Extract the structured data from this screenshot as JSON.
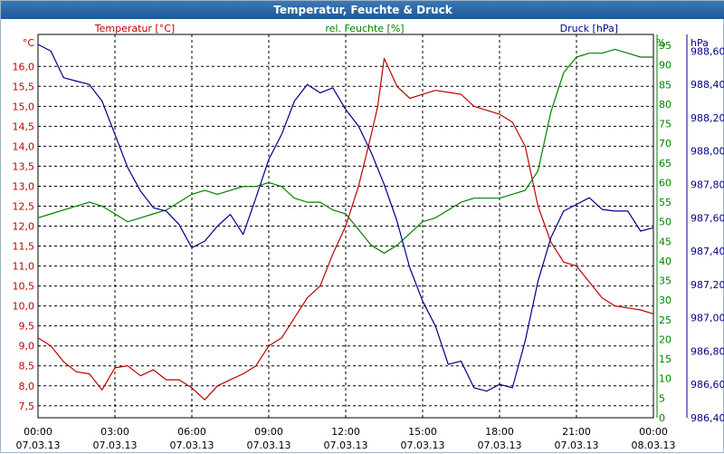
{
  "window": {
    "title": "Temperatur, Feuchte & Druck"
  },
  "colors": {
    "temperature": "#c00000",
    "humidity": "#008000",
    "pressure": "#00008b",
    "grid": "#000000"
  },
  "chart_data": {
    "type": "line",
    "title": "Temperatur, Feuchte & Druck",
    "grid": true,
    "x_ticks": [
      {
        "time": "00:00",
        "date": "07.03.13"
      },
      {
        "time": "03:00",
        "date": "07.03.13"
      },
      {
        "time": "06:00",
        "date": "07.03.13"
      },
      {
        "time": "09:00",
        "date": "07.03.13"
      },
      {
        "time": "12:00",
        "date": "07.03.13"
      },
      {
        "time": "15:00",
        "date": "07.03.13"
      },
      {
        "time": "18:00",
        "date": "07.03.13"
      },
      {
        "time": "21:00",
        "date": "07.03.13"
      },
      {
        "time": "00:00",
        "date": "08.03.13"
      }
    ],
    "axes": {
      "left": {
        "unit": "°C",
        "ylim": [
          7.2,
          16.8
        ],
        "ticks": [
          "7,5",
          "8,0",
          "8,5",
          "9,0",
          "9,5",
          "10,0",
          "10,5",
          "11,0",
          "11,5",
          "12,0",
          "12,5",
          "13,0",
          "13,5",
          "14,0",
          "14,5",
          "15,0",
          "15,5",
          "16,0"
        ]
      },
      "right1": {
        "unit": "%",
        "ylim": [
          0,
          97.78
        ],
        "ticks": [
          "0",
          "5",
          "10",
          "15",
          "20",
          "25",
          "30",
          "35",
          "40",
          "45",
          "50",
          "55",
          "60",
          "65",
          "70",
          "75",
          "80",
          "85",
          "90",
          "95"
        ]
      },
      "right2": {
        "unit": "hPa",
        "ylim": [
          986.4,
          988.7
        ],
        "ticks": [
          "986,40",
          "986,60",
          "986,80",
          "987,00",
          "987,20",
          "987,40",
          "987,60",
          "987,80",
          "988,00",
          "988,20",
          "988,40",
          "988,60"
        ]
      }
    },
    "series": [
      {
        "name": "Temperatur [°C]",
        "axis": "left",
        "x": [
          0,
          0.5,
          1,
          1.5,
          2,
          2.5,
          3,
          3.5,
          4,
          4.5,
          5,
          5.5,
          6,
          6.5,
          7,
          7.5,
          8,
          8.5,
          9,
          9.5,
          10,
          10.5,
          11,
          11.5,
          12,
          12.5,
          13,
          13.25,
          13.5,
          14,
          14.5,
          15,
          15.5,
          16,
          16.5,
          17,
          17.5,
          18,
          18.5,
          19,
          19.5,
          20,
          20.5,
          21,
          21.5,
          22,
          22.5,
          23,
          23.5,
          24
        ],
        "values": [
          9.2,
          9.0,
          8.6,
          8.35,
          8.3,
          7.9,
          8.45,
          8.5,
          8.25,
          8.4,
          8.15,
          8.15,
          7.95,
          7.65,
          8.0,
          8.15,
          8.3,
          8.5,
          9.0,
          9.2,
          9.7,
          10.2,
          10.5,
          11.3,
          12.0,
          13.0,
          14.3,
          15.0,
          16.2,
          15.5,
          15.2,
          15.3,
          15.4,
          15.35,
          15.3,
          15.0,
          14.9,
          14.8,
          14.6,
          14.0,
          12.5,
          11.6,
          11.1,
          11.0,
          10.6,
          10.2,
          10.0,
          9.95,
          9.9,
          9.8
        ]
      },
      {
        "name": "rel. Feuchte [%]",
        "axis": "right1",
        "x": [
          0,
          0.5,
          1,
          1.5,
          2,
          2.5,
          3,
          3.5,
          4,
          4.5,
          5,
          5.5,
          6,
          6.5,
          7,
          7.5,
          8,
          8.5,
          9,
          9.5,
          10,
          10.5,
          11,
          11.5,
          12,
          12.5,
          13,
          13.5,
          14,
          14.5,
          15,
          15.5,
          16,
          16.5,
          17,
          17.5,
          18,
          18.5,
          19,
          19.5,
          20,
          20.5,
          21,
          21.5,
          22,
          22.5,
          23,
          23.5,
          24
        ],
        "values": [
          51,
          52,
          53,
          54,
          55,
          54,
          52,
          50,
          51,
          52,
          53,
          55,
          57,
          58,
          57,
          58,
          59,
          59,
          60,
          59,
          56,
          55,
          55,
          53,
          52,
          48,
          44,
          42,
          44,
          47,
          50,
          51,
          53,
          55,
          56,
          56,
          56,
          57,
          58,
          63,
          78,
          88,
          92,
          93,
          93,
          94,
          93,
          92,
          92
        ]
      },
      {
        "name": "Druck [hPa]",
        "axis": "right2",
        "x": [
          0,
          0.5,
          1,
          1.5,
          2,
          2.5,
          3,
          3.5,
          4,
          4.5,
          5,
          5.5,
          6,
          6.5,
          7,
          7.5,
          8,
          8.5,
          9,
          9.5,
          10,
          10.5,
          11,
          11.5,
          12,
          12.5,
          13,
          13.5,
          14,
          14.5,
          15,
          15.5,
          16,
          16.5,
          17,
          17.5,
          18,
          18.5,
          19,
          19.5,
          20,
          20.5,
          21,
          21.5,
          22,
          22.5,
          23,
          23.5,
          24
        ],
        "values": [
          988.64,
          988.6,
          988.44,
          988.42,
          988.4,
          988.3,
          988.1,
          987.9,
          987.76,
          987.66,
          987.64,
          987.56,
          987.42,
          987.46,
          987.55,
          987.62,
          987.5,
          987.72,
          987.95,
          988.1,
          988.3,
          988.4,
          988.35,
          988.38,
          988.25,
          988.15,
          987.99,
          987.8,
          987.58,
          987.3,
          987.1,
          986.95,
          986.72,
          986.74,
          986.58,
          986.56,
          986.6,
          986.58,
          986.86,
          987.22,
          987.48,
          987.64,
          987.68,
          987.72,
          987.65,
          987.64,
          987.64,
          987.52,
          987.54
        ]
      }
    ]
  }
}
